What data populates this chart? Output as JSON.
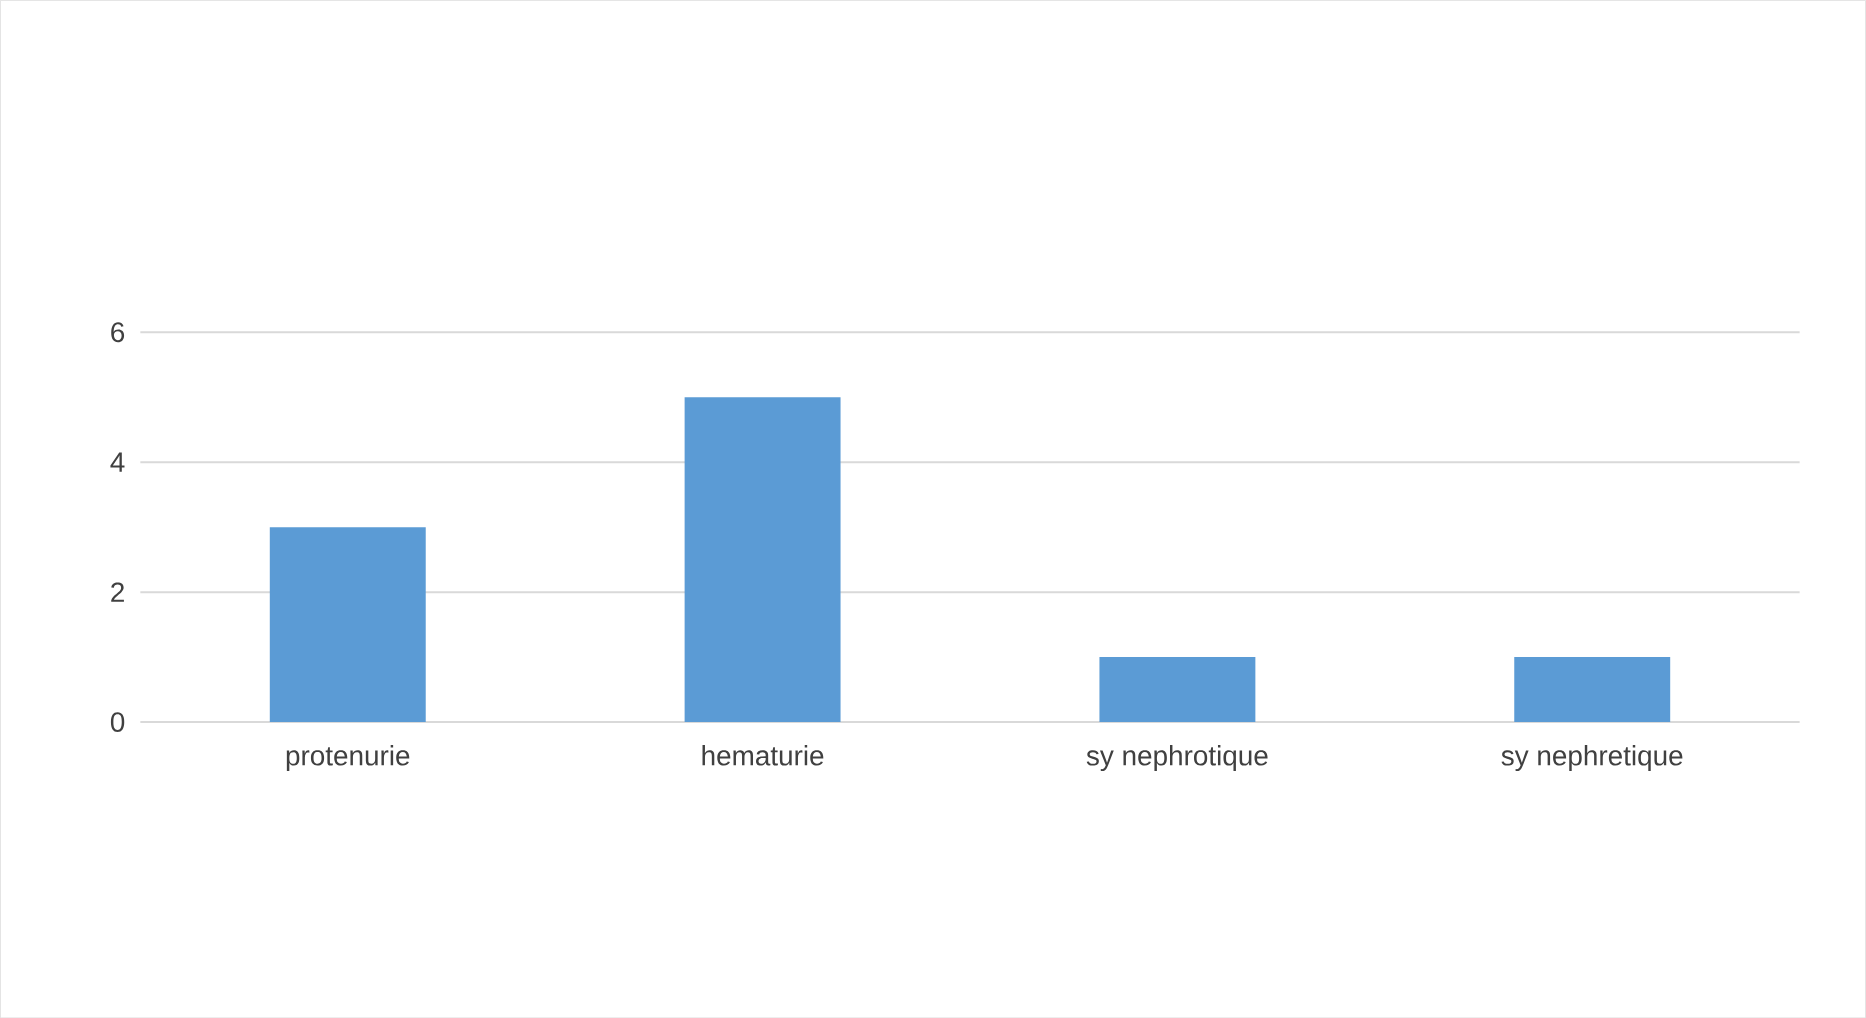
{
  "chart_data": {
    "type": "bar",
    "categories": [
      "protenurie",
      "hematurie",
      "sy nephrotique",
      "sy nephretique"
    ],
    "values": [
      3,
      5,
      1,
      1
    ],
    "color": "#5b9bd5",
    "ylim": [
      0,
      6
    ],
    "yticks": [
      0,
      2,
      4,
      6
    ],
    "grid": "y"
  }
}
